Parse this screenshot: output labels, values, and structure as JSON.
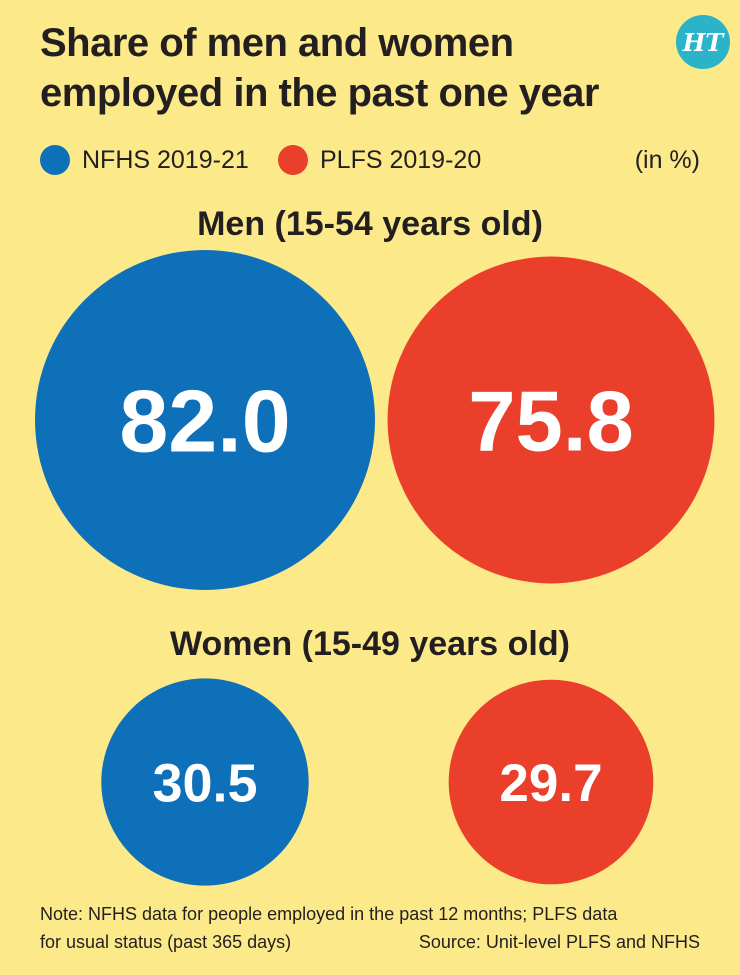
{
  "title": "Share of men and women employed in the past one year",
  "logo_text": "HT",
  "unit_label": "(in %)",
  "colors": {
    "nfhs": "#0e70b8",
    "plfs": "#ea3f2b",
    "background": "#fbe98a",
    "logo": "#2bb3c9"
  },
  "chart_data": {
    "type": "bubble",
    "title": "Share of men and women employed in the past one year",
    "unit": "%",
    "legend_position": "top-left",
    "series": [
      {
        "name": "NFHS 2019-21",
        "color": "#0e70b8"
      },
      {
        "name": "PLFS 2019-20",
        "color": "#ea3f2b"
      }
    ],
    "groups": [
      {
        "label": "Men (15-54 years old)",
        "values": [
          82.0,
          75.8
        ],
        "value_labels": [
          "82.0",
          "75.8"
        ]
      },
      {
        "label": "Women (15-49 years old)",
        "values": [
          30.5,
          29.7
        ],
        "value_labels": [
          "30.5",
          "29.7"
        ]
      }
    ]
  },
  "note_line1": "Note: NFHS data for people employed in the past 12 months; PLFS data",
  "note_line2": "for usual status (past 365 days)",
  "source": "Source: Unit-level PLFS and NFHS"
}
